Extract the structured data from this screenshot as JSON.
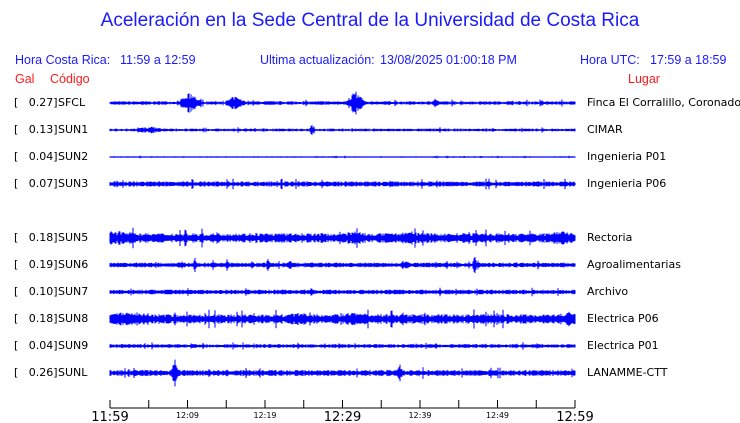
{
  "title": "Aceleración en la Sede Central de la Universidad de Costa Rica",
  "header": {
    "local_label": "Hora Costa Rica:",
    "local_range": "11:59 a 12:59",
    "update_label": "Ultima actualización:",
    "update_value": "13/08/2025 01:00:18 PM",
    "utc_label": "Hora UTC:",
    "utc_range": "17:59 a 18:59"
  },
  "columns": {
    "gal": "Gal",
    "code": "Código",
    "place": "Lugar"
  },
  "stations": [
    {
      "gal": "[   0.27]",
      "code": "SFCL",
      "place": "Finca El Corralillo, Coronado"
    },
    {
      "gal": "[   0.13]",
      "code": "SUN1",
      "place": "CIMAR"
    },
    {
      "gal": "[   0.04]",
      "code": "SUN2",
      "place": "Ingenieria P01"
    },
    {
      "gal": "[   0.07]",
      "code": "SUN3",
      "place": "Ingenieria P06"
    },
    {
      "gal": "[   0.18]",
      "code": "SUN5",
      "place": "Rectoria"
    },
    {
      "gal": "[   0.19]",
      "code": "SUN6",
      "place": "Agroalimentarias"
    },
    {
      "gal": "[   0.10]",
      "code": "SUN7",
      "place": "Archivo"
    },
    {
      "gal": "[   0.18]",
      "code": "SUN8",
      "place": "Electrica P06"
    },
    {
      "gal": "[   0.04]",
      "code": "SUN9",
      "place": "Electrica P01"
    },
    {
      "gal": "[   0.26]",
      "code": "SUNL",
      "place": "LANAMME-CTT"
    }
  ],
  "time_axis": {
    "labels": [
      "11:59",
      "12:09",
      "12:19",
      "12:29",
      "12:39",
      "12:49",
      "12:59"
    ],
    "major": [
      true,
      false,
      false,
      true,
      false,
      false,
      true
    ]
  },
  "colors": {
    "title": "#1a1aff",
    "headers": "#ff1a1a",
    "trace": "#0000ff"
  }
}
